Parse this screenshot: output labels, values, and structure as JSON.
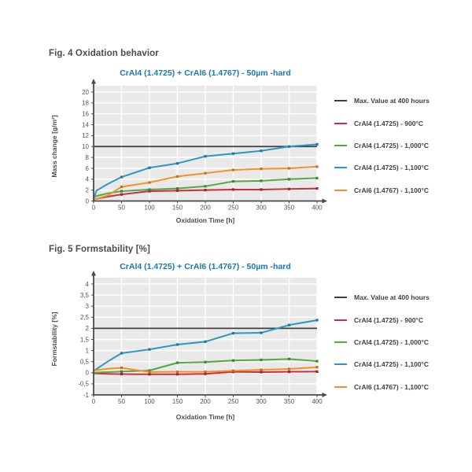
{
  "figures": [
    {
      "caption": "Fig. 4 Oxidation behavior"
    },
    {
      "caption": "Fig. 5 Formstability [%]"
    }
  ],
  "legend": {
    "items": [
      {
        "label": "Max. Value at 400 hours",
        "color": "#3f3f3f"
      },
      {
        "label": "CrAl4 (1.4725) - 900°C",
        "color": "#cf2b3f"
      },
      {
        "label": "CrAl4 (1.4725) - 1,000°C",
        "color": "#56a646"
      },
      {
        "label": "CrAl4 (1.4725) - 1,100°C",
        "color": "#2e96c5"
      },
      {
        "label": "CrAl6 (1.4767) - 1,100°C",
        "color": "#ef9327"
      }
    ]
  },
  "chart_data": [
    {
      "type": "line",
      "title": "CrAl4 (1.4725) + CrAl6 (1.4767) - 50µm -hard",
      "xlabel": "Oxidation Time [h]",
      "ylabel": "Mass change [g/m²]",
      "xlim": [
        0,
        400
      ],
      "ylim": [
        0,
        20
      ],
      "xticks": [
        0,
        50,
        100,
        150,
        200,
        250,
        300,
        350,
        400
      ],
      "xtick_labels": [
        "0",
        "50",
        "100",
        "150",
        "200",
        "250",
        "300",
        "350",
        "400"
      ],
      "yticks": [
        0,
        2,
        4,
        6,
        8,
        10,
        12,
        14,
        16,
        18,
        20
      ],
      "ytick_labels": [
        "0",
        "2",
        "4",
        "6",
        "8",
        "10",
        "12",
        "14",
        "16",
        "18",
        "20"
      ],
      "grid": true,
      "legend_position": "right",
      "max_value_line": {
        "label": "Max. Value at 400 hours",
        "value": 10,
        "color": "#3f3f3f"
      },
      "x": [
        0,
        5,
        25,
        50,
        100,
        150,
        200,
        250,
        300,
        350,
        400
      ],
      "series": [
        {
          "name": "CrAl4 (1.4725) - 900°C",
          "color": "#cf2b3f",
          "values": [
            0.2,
            0.4,
            0.8,
            1.2,
            1.8,
            1.9,
            2.0,
            2.1,
            2.1,
            2.2,
            2.3
          ]
        },
        {
          "name": "CrAl4 (1.4725) - 1,000°C",
          "color": "#56a646",
          "values": [
            0.7,
            0.9,
            1.4,
            1.8,
            2.1,
            2.3,
            2.7,
            3.6,
            3.7,
            4.0,
            4.2
          ]
        },
        {
          "name": "CrAl4 (1.4725) - 1,100°C",
          "color": "#2e96c5",
          "values": [
            0.3,
            1.9,
            3.1,
            4.4,
            6.1,
            6.9,
            8.2,
            8.7,
            9.2,
            10.0,
            10.4
          ]
        },
        {
          "name": "CrAl6 (1.4767) - 1,100°C",
          "color": "#ef9327",
          "values": [
            0.2,
            0.4,
            1.0,
            2.6,
            3.4,
            4.5,
            5.1,
            5.7,
            5.9,
            6.0,
            6.3
          ]
        }
      ]
    },
    {
      "type": "line",
      "title": "CrAl4 (1.4725) + CrAl6 (1.4767) - 50µm -hard",
      "xlabel": "Oxidation Time [h]",
      "ylabel": "Formstability [%]",
      "xlim": [
        0,
        400
      ],
      "ylim": [
        -1,
        4
      ],
      "xticks": [
        0,
        50,
        100,
        150,
        200,
        250,
        300,
        350,
        400
      ],
      "xtick_labels": [
        "0",
        "50",
        "100",
        "150",
        "200",
        "250",
        "300",
        "350",
        "400"
      ],
      "yticks": [
        -1,
        -0.5,
        0,
        0.5,
        1,
        1.5,
        2,
        2.5,
        3,
        3.5,
        4
      ],
      "ytick_labels": [
        "-1",
        "-0,5",
        "0",
        "0,5",
        "1",
        "1,5",
        "2",
        "2,5",
        "3",
        "3,5",
        "4"
      ],
      "grid": true,
      "legend_position": "right",
      "max_value_line": {
        "label": "Max. Value at 400 hours",
        "value": 2,
        "color": "#3f3f3f"
      },
      "x": [
        0,
        25,
        50,
        100,
        150,
        200,
        250,
        300,
        350,
        400
      ],
      "series": [
        {
          "name": "CrAl4 (1.4725) - 900°C",
          "color": "#cf2b3f",
          "values": [
            -0.03,
            -0.05,
            -0.06,
            -0.07,
            -0.07,
            -0.05,
            0.04,
            0.03,
            0.04,
            0.05
          ]
        },
        {
          "name": "CrAl4 (1.4725) - 1,000°C",
          "color": "#56a646",
          "values": [
            0.0,
            0.03,
            0.05,
            0.1,
            0.45,
            0.48,
            0.55,
            0.58,
            0.62,
            0.52
          ]
        },
        {
          "name": "CrAl4 (1.4725) - 1,100°C",
          "color": "#2e96c5",
          "values": [
            0.08,
            0.5,
            0.88,
            1.05,
            1.27,
            1.4,
            1.78,
            1.8,
            2.15,
            2.37
          ]
        },
        {
          "name": "CrAl6 (1.4767) - 1,100°C",
          "color": "#ef9327",
          "values": [
            0.1,
            0.18,
            0.22,
            0.03,
            0.04,
            0.04,
            0.09,
            0.13,
            0.17,
            0.25
          ]
        }
      ]
    }
  ]
}
